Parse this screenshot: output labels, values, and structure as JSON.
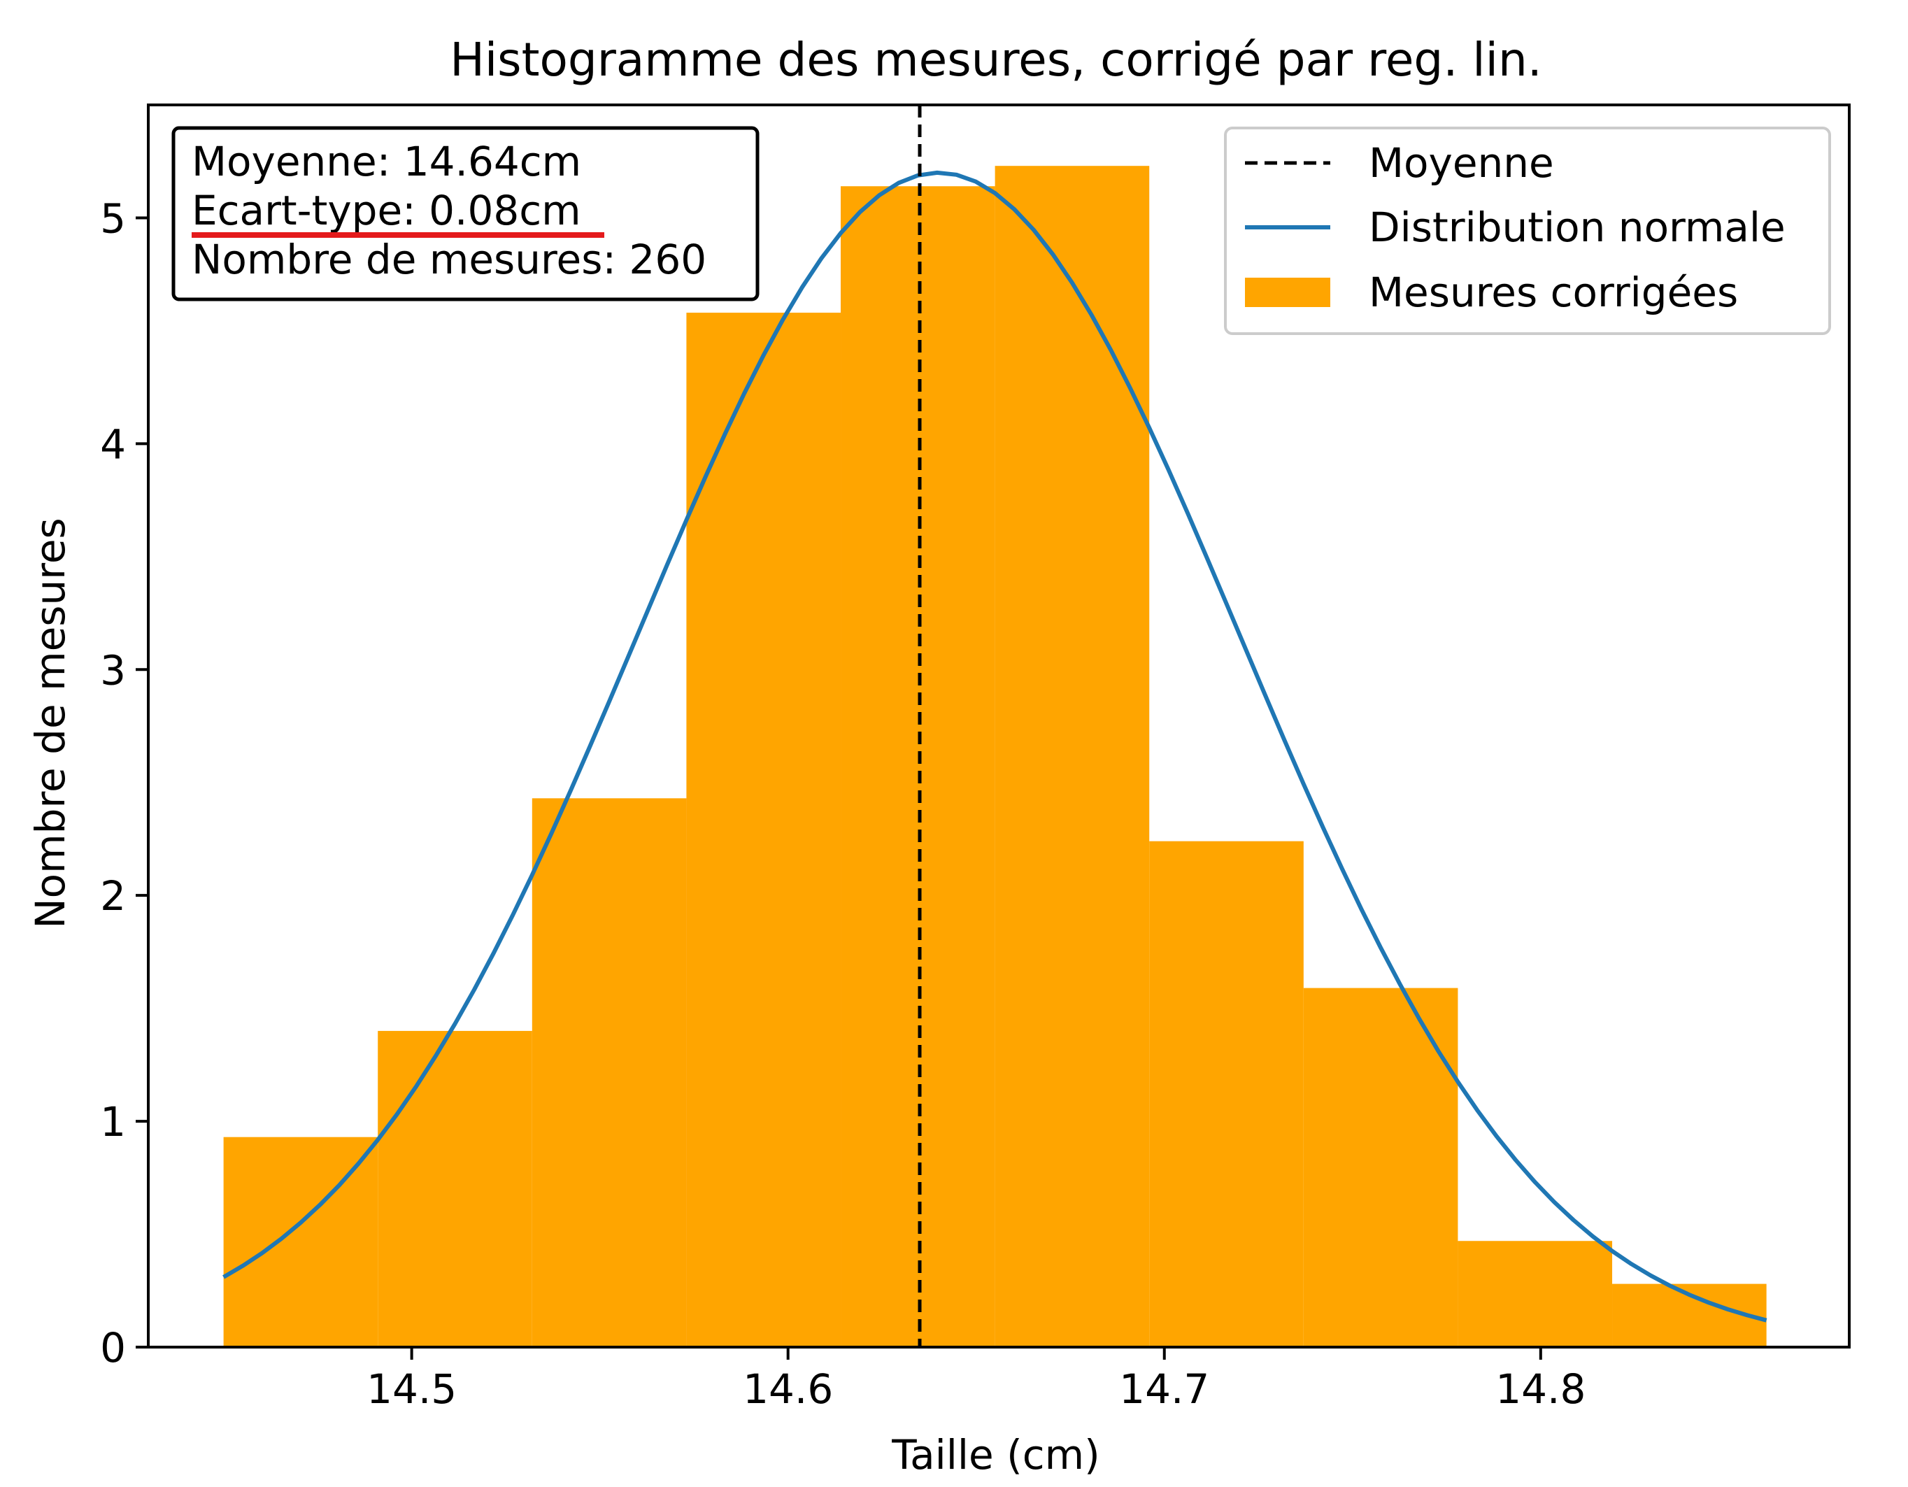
{
  "chart_data": {
    "type": "bar",
    "title": "Histogramme des mesures, corrigé par reg. lin.",
    "xlabel": "Taille (cm)",
    "ylabel": "Nombre de mesures",
    "xlim": [
      14.43,
      14.882
    ],
    "ylim": [
      0,
      5.5
    ],
    "xticks": [
      14.5,
      14.6,
      14.7,
      14.8
    ],
    "xtick_labels": [
      "14.5",
      "14.6",
      "14.7",
      "14.8"
    ],
    "yticks": [
      0,
      1,
      2,
      3,
      4,
      5
    ],
    "ytick_labels": [
      "0",
      "1",
      "2",
      "3",
      "4",
      "5"
    ],
    "grid": false,
    "legend_position": "top-right",
    "bin_edges": [
      14.45,
      14.491,
      14.532,
      14.573,
      14.614,
      14.655,
      14.696,
      14.737,
      14.778,
      14.819,
      14.86
    ],
    "bins": [
      {
        "x0": 14.45,
        "x1": 14.491,
        "value": 0.93
      },
      {
        "x0": 14.491,
        "x1": 14.532,
        "value": 1.4
      },
      {
        "x0": 14.532,
        "x1": 14.573,
        "value": 2.43
      },
      {
        "x0": 14.573,
        "x1": 14.614,
        "value": 4.58
      },
      {
        "x0": 14.614,
        "x1": 14.655,
        "value": 5.14
      },
      {
        "x0": 14.655,
        "x1": 14.696,
        "value": 5.23
      },
      {
        "x0": 14.696,
        "x1": 14.737,
        "value": 2.24
      },
      {
        "x0": 14.737,
        "x1": 14.778,
        "value": 1.59
      },
      {
        "x0": 14.778,
        "x1": 14.819,
        "value": 0.47
      },
      {
        "x0": 14.819,
        "x1": 14.86,
        "value": 0.28
      }
    ],
    "mean_line": {
      "x": 14.635
    },
    "normal_curve": {
      "mean": 14.64,
      "std": 0.08,
      "peak": 5.2,
      "x_range": [
        14.45,
        14.86
      ]
    },
    "colors": {
      "bars": "#FFA500",
      "curve": "#1f77b4",
      "mean_line": "#000000",
      "annotation_underline": "#e41a1c"
    },
    "legend": [
      {
        "label": "Moyenne",
        "style": "dashed-line"
      },
      {
        "label": "Distribution normale",
        "style": "line"
      },
      {
        "label": "Mesures corrigées",
        "style": "patch"
      }
    ],
    "stats_box": {
      "lines": [
        "Moyenne: 14.64cm",
        "Ecart-type: 0.08cm",
        "Nombre de mesures: 260"
      ],
      "underlined_line": 1
    }
  }
}
